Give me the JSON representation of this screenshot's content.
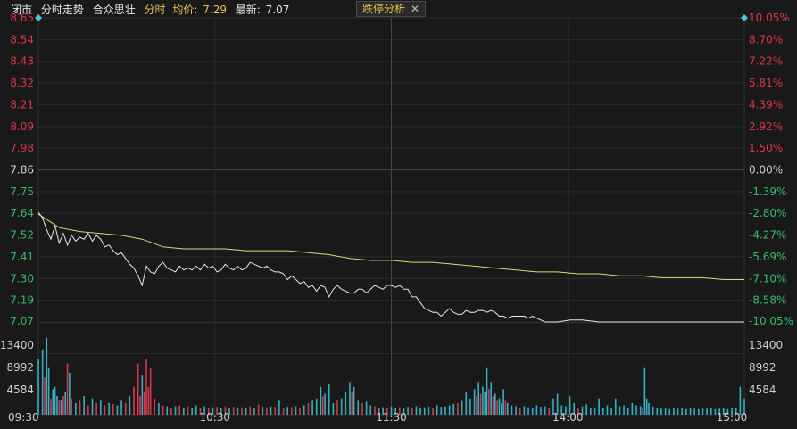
{
  "header": {
    "status": "闭市",
    "mode": "分时走势",
    "name": "合众思壮",
    "period": "分时",
    "avg_label": "均价:",
    "avg_value": "7.29",
    "last_label": "最新:",
    "last_value": "7.07"
  },
  "panel_button": {
    "label": "跌停分析",
    "close": "✕"
  },
  "colors": {
    "up": "#e0354b",
    "down": "#2fbe6a",
    "flat": "#d0d0d0",
    "price_line": "#e8e8e8",
    "avg_line": "#d9d97a",
    "vol_up": "#e0354b",
    "vol_down": "#29b6c8",
    "grid": "#2c2c2c"
  },
  "chart_data": {
    "type": "line",
    "price_ticks": [
      "8.65",
      "8.54",
      "8.43",
      "8.32",
      "8.21",
      "8.09",
      "7.98",
      "7.86",
      "7.75",
      "7.64",
      "7.52",
      "7.41",
      "7.30",
      "7.19",
      "7.07"
    ],
    "pct_ticks": [
      "10.05%",
      "8.70%",
      "7.22%",
      "5.81%",
      "4.39%",
      "2.92%",
      "1.50%",
      "0.00%",
      "-1.39%",
      "-2.80%",
      "-4.27%",
      "-5.69%",
      "-7.10%",
      "-8.58%",
      "-10.05%"
    ],
    "ylim": [
      7.07,
      8.65
    ],
    "prev_close": 7.86,
    "volume_ticks": [
      "13400",
      "8992",
      "4584"
    ],
    "volume_max": 17800,
    "time_ticks": [
      "09:30",
      "10:30",
      "11:30",
      "14:00",
      "15:00"
    ],
    "price_series": [
      [
        0,
        7.64
      ],
      [
        2,
        7.61
      ],
      [
        4,
        7.55
      ],
      [
        6,
        7.5
      ],
      [
        8,
        7.57
      ],
      [
        10,
        7.48
      ],
      [
        12,
        7.53
      ],
      [
        14,
        7.47
      ],
      [
        16,
        7.52
      ],
      [
        18,
        7.49
      ],
      [
        20,
        7.51
      ],
      [
        22,
        7.5
      ],
      [
        24,
        7.53
      ],
      [
        26,
        7.49
      ],
      [
        28,
        7.52
      ],
      [
        30,
        7.5
      ],
      [
        32,
        7.46
      ],
      [
        34,
        7.47
      ],
      [
        36,
        7.44
      ],
      [
        38,
        7.42
      ],
      [
        40,
        7.43
      ],
      [
        42,
        7.4
      ],
      [
        44,
        7.37
      ],
      [
        46,
        7.35
      ],
      [
        48,
        7.31
      ],
      [
        50,
        7.26
      ],
      [
        52,
        7.36
      ],
      [
        54,
        7.33
      ],
      [
        56,
        7.32
      ],
      [
        58,
        7.36
      ],
      [
        60,
        7.38
      ],
      [
        62,
        7.35
      ],
      [
        64,
        7.34
      ],
      [
        66,
        7.33
      ],
      [
        68,
        7.36
      ],
      [
        70,
        7.34
      ],
      [
        72,
        7.35
      ],
      [
        74,
        7.34
      ],
      [
        76,
        7.36
      ],
      [
        78,
        7.34
      ],
      [
        80,
        7.37
      ],
      [
        82,
        7.35
      ],
      [
        84,
        7.36
      ],
      [
        86,
        7.33
      ],
      [
        88,
        7.34
      ],
      [
        90,
        7.37
      ],
      [
        92,
        7.35
      ],
      [
        94,
        7.34
      ],
      [
        96,
        7.36
      ],
      [
        98,
        7.34
      ],
      [
        100,
        7.35
      ],
      [
        102,
        7.38
      ],
      [
        104,
        7.37
      ],
      [
        106,
        7.36
      ],
      [
        108,
        7.35
      ],
      [
        110,
        7.36
      ],
      [
        112,
        7.34
      ],
      [
        114,
        7.33
      ],
      [
        116,
        7.33
      ],
      [
        118,
        7.32
      ],
      [
        120,
        7.29
      ],
      [
        122,
        7.31
      ],
      [
        124,
        7.29
      ],
      [
        126,
        7.27
      ],
      [
        128,
        7.28
      ],
      [
        130,
        7.25
      ],
      [
        132,
        7.26
      ],
      [
        134,
        7.23
      ],
      [
        136,
        7.26
      ],
      [
        138,
        7.25
      ],
      [
        140,
        7.2
      ],
      [
        142,
        7.24
      ],
      [
        144,
        7.26
      ],
      [
        146,
        7.24
      ],
      [
        148,
        7.23
      ],
      [
        150,
        7.22
      ],
      [
        152,
        7.22
      ],
      [
        154,
        7.24
      ],
      [
        156,
        7.24
      ],
      [
        158,
        7.22
      ],
      [
        160,
        7.24
      ],
      [
        162,
        7.26
      ],
      [
        164,
        7.25
      ],
      [
        166,
        7.24
      ],
      [
        168,
        7.26
      ],
      [
        170,
        7.26
      ],
      [
        172,
        7.25
      ],
      [
        174,
        7.26
      ],
      [
        176,
        7.24
      ],
      [
        178,
        7.24
      ],
      [
        180,
        7.2
      ],
      [
        182,
        7.2
      ],
      [
        184,
        7.17
      ],
      [
        186,
        7.14
      ],
      [
        188,
        7.13
      ],
      [
        190,
        7.12
      ],
      [
        192,
        7.12
      ],
      [
        194,
        7.1
      ],
      [
        196,
        7.12
      ],
      [
        198,
        7.14
      ],
      [
        200,
        7.12
      ],
      [
        202,
        7.11
      ],
      [
        204,
        7.11
      ],
      [
        206,
        7.13
      ],
      [
        208,
        7.12
      ],
      [
        210,
        7.12
      ],
      [
        212,
        7.13
      ],
      [
        214,
        7.13
      ],
      [
        216,
        7.12
      ],
      [
        218,
        7.13
      ],
      [
        220,
        7.12
      ],
      [
        222,
        7.1
      ],
      [
        224,
        7.1
      ],
      [
        226,
        7.09
      ],
      [
        228,
        7.1
      ],
      [
        230,
        7.1
      ],
      [
        232,
        7.1
      ],
      [
        234,
        7.1
      ],
      [
        236,
        7.09
      ],
      [
        238,
        7.1
      ],
      [
        240,
        7.09
      ],
      [
        244,
        7.07
      ],
      [
        250,
        7.07
      ],
      [
        256,
        7.08
      ],
      [
        262,
        7.08
      ],
      [
        270,
        7.07
      ],
      [
        280,
        7.07
      ],
      [
        290,
        7.07
      ],
      [
        300,
        7.07
      ],
      [
        310,
        7.07
      ],
      [
        320,
        7.07
      ],
      [
        330,
        7.07
      ],
      [
        340,
        7.07
      ]
    ],
    "avg_series": [
      [
        0,
        7.63
      ],
      [
        10,
        7.56
      ],
      [
        20,
        7.54
      ],
      [
        30,
        7.53
      ],
      [
        40,
        7.52
      ],
      [
        50,
        7.5
      ],
      [
        60,
        7.46
      ],
      [
        70,
        7.45
      ],
      [
        80,
        7.45
      ],
      [
        90,
        7.45
      ],
      [
        100,
        7.44
      ],
      [
        110,
        7.44
      ],
      [
        120,
        7.44
      ],
      [
        130,
        7.43
      ],
      [
        140,
        7.42
      ],
      [
        150,
        7.4
      ],
      [
        160,
        7.39
      ],
      [
        170,
        7.39
      ],
      [
        180,
        7.38
      ],
      [
        190,
        7.38
      ],
      [
        200,
        7.37
      ],
      [
        210,
        7.36
      ],
      [
        220,
        7.35
      ],
      [
        230,
        7.34
      ],
      [
        240,
        7.33
      ],
      [
        250,
        7.33
      ],
      [
        260,
        7.32
      ],
      [
        270,
        7.32
      ],
      [
        280,
        7.31
      ],
      [
        290,
        7.31
      ],
      [
        300,
        7.3
      ],
      [
        310,
        7.3
      ],
      [
        320,
        7.3
      ],
      [
        330,
        7.29
      ],
      [
        340,
        7.29
      ]
    ],
    "volume_bars": [
      [
        0,
        12000,
        "down"
      ],
      [
        2,
        14000,
        "down"
      ],
      [
        3,
        8000,
        "up"
      ],
      [
        4,
        16500,
        "down"
      ],
      [
        5,
        10000,
        "down"
      ],
      [
        6,
        3500,
        "up"
      ],
      [
        7,
        5500,
        "down"
      ],
      [
        8,
        6000,
        "down"
      ],
      [
        9,
        4000,
        "down"
      ],
      [
        10,
        3000,
        "up"
      ],
      [
        11,
        3200,
        "down"
      ],
      [
        12,
        4000,
        "up"
      ],
      [
        13,
        5000,
        "down"
      ],
      [
        14,
        11000,
        "up"
      ],
      [
        15,
        9000,
        "down"
      ],
      [
        16,
        3500,
        "up"
      ],
      [
        18,
        2500,
        "down"
      ],
      [
        20,
        3000,
        "up"
      ],
      [
        22,
        4000,
        "down"
      ],
      [
        24,
        2000,
        "up"
      ],
      [
        26,
        3500,
        "down"
      ],
      [
        28,
        2500,
        "up"
      ],
      [
        30,
        3000,
        "down"
      ],
      [
        32,
        2000,
        "up"
      ],
      [
        34,
        2500,
        "down"
      ],
      [
        36,
        2300,
        "up"
      ],
      [
        38,
        2000,
        "down"
      ],
      [
        40,
        3000,
        "down"
      ],
      [
        42,
        2500,
        "up"
      ],
      [
        44,
        4000,
        "down"
      ],
      [
        46,
        6000,
        "up"
      ],
      [
        48,
        11000,
        "up"
      ],
      [
        49,
        4000,
        "up"
      ],
      [
        50,
        8500,
        "down"
      ],
      [
        51,
        5000,
        "up"
      ],
      [
        52,
        12000,
        "up"
      ],
      [
        53,
        6000,
        "up"
      ],
      [
        54,
        10000,
        "up"
      ],
      [
        56,
        3500,
        "up"
      ],
      [
        58,
        2500,
        "down"
      ],
      [
        60,
        2000,
        "up"
      ],
      [
        62,
        1800,
        "down"
      ],
      [
        64,
        1500,
        "up"
      ],
      [
        66,
        1800,
        "down"
      ],
      [
        68,
        2000,
        "up"
      ],
      [
        70,
        1500,
        "down"
      ],
      [
        72,
        1800,
        "up"
      ],
      [
        74,
        1500,
        "down"
      ],
      [
        76,
        2000,
        "down"
      ],
      [
        78,
        1500,
        "up"
      ],
      [
        80,
        1800,
        "down"
      ],
      [
        82,
        1500,
        "up"
      ],
      [
        84,
        1600,
        "down"
      ],
      [
        86,
        1700,
        "up"
      ],
      [
        88,
        1500,
        "down"
      ],
      [
        90,
        1800,
        "up"
      ],
      [
        92,
        1500,
        "down"
      ],
      [
        94,
        1700,
        "up"
      ],
      [
        96,
        1500,
        "down"
      ],
      [
        98,
        1600,
        "up"
      ],
      [
        100,
        1500,
        "down"
      ],
      [
        102,
        1800,
        "up"
      ],
      [
        104,
        1500,
        "down"
      ],
      [
        106,
        2200,
        "up"
      ],
      [
        108,
        1700,
        "down"
      ],
      [
        110,
        1600,
        "up"
      ],
      [
        112,
        1800,
        "down"
      ],
      [
        114,
        1700,
        "up"
      ],
      [
        116,
        3000,
        "down"
      ],
      [
        118,
        1500,
        "up"
      ],
      [
        120,
        1700,
        "down"
      ],
      [
        122,
        1600,
        "up"
      ],
      [
        124,
        1800,
        "down"
      ],
      [
        126,
        1500,
        "up"
      ],
      [
        128,
        2000,
        "down"
      ],
      [
        130,
        2500,
        "up"
      ],
      [
        132,
        3000,
        "down"
      ],
      [
        134,
        3500,
        "down"
      ],
      [
        136,
        6000,
        "down"
      ],
      [
        137,
        4000,
        "up"
      ],
      [
        138,
        4500,
        "down"
      ],
      [
        140,
        6500,
        "down"
      ],
      [
        142,
        2500,
        "down"
      ],
      [
        144,
        3000,
        "up"
      ],
      [
        146,
        3500,
        "down"
      ],
      [
        148,
        5000,
        "down"
      ],
      [
        150,
        7000,
        "down"
      ],
      [
        151,
        5000,
        "up"
      ],
      [
        152,
        6000,
        "down"
      ],
      [
        154,
        3000,
        "down"
      ],
      [
        156,
        2500,
        "up"
      ],
      [
        158,
        2800,
        "down"
      ],
      [
        160,
        2000,
        "down"
      ],
      [
        162,
        1800,
        "up"
      ],
      [
        164,
        1500,
        "down"
      ],
      [
        166,
        1600,
        "down"
      ],
      [
        168,
        1500,
        "up"
      ],
      [
        170,
        1800,
        "down"
      ],
      [
        172,
        1500,
        "down"
      ],
      [
        174,
        1600,
        "up"
      ],
      [
        176,
        1500,
        "down"
      ],
      [
        178,
        1700,
        "down"
      ],
      [
        180,
        1500,
        "up"
      ],
      [
        182,
        1800,
        "down"
      ],
      [
        184,
        1500,
        "down"
      ],
      [
        186,
        1600,
        "down"
      ],
      [
        188,
        1800,
        "down"
      ],
      [
        190,
        1500,
        "up"
      ],
      [
        192,
        2000,
        "down"
      ],
      [
        194,
        1700,
        "down"
      ],
      [
        196,
        1800,
        "down"
      ],
      [
        198,
        2000,
        "down"
      ],
      [
        200,
        2300,
        "down"
      ],
      [
        202,
        2500,
        "up"
      ],
      [
        204,
        3000,
        "down"
      ],
      [
        206,
        5000,
        "down"
      ],
      [
        208,
        3500,
        "down"
      ],
      [
        210,
        5500,
        "down"
      ],
      [
        211,
        4000,
        "up"
      ],
      [
        212,
        7000,
        "down"
      ],
      [
        213,
        4500,
        "up"
      ],
      [
        214,
        6000,
        "down"
      ],
      [
        215,
        5000,
        "down"
      ],
      [
        216,
        10000,
        "down"
      ],
      [
        217,
        5500,
        "up"
      ],
      [
        218,
        7000,
        "down"
      ],
      [
        219,
        4000,
        "up"
      ],
      [
        220,
        4500,
        "down"
      ],
      [
        221,
        3000,
        "up"
      ],
      [
        222,
        3500,
        "down"
      ],
      [
        223,
        2500,
        "down"
      ],
      [
        224,
        5500,
        "down"
      ],
      [
        225,
        3000,
        "up"
      ],
      [
        226,
        2500,
        "down"
      ],
      [
        228,
        2000,
        "down"
      ],
      [
        230,
        1800,
        "down"
      ],
      [
        232,
        1500,
        "up"
      ],
      [
        234,
        1800,
        "down"
      ],
      [
        236,
        1600,
        "down"
      ],
      [
        238,
        1500,
        "down"
      ],
      [
        240,
        2000,
        "down"
      ],
      [
        242,
        1700,
        "down"
      ],
      [
        244,
        1800,
        "down"
      ],
      [
        246,
        1500,
        "up"
      ],
      [
        248,
        3500,
        "down"
      ],
      [
        250,
        4500,
        "down"
      ],
      [
        252,
        2000,
        "down"
      ],
      [
        254,
        1800,
        "down"
      ],
      [
        256,
        4000,
        "down"
      ],
      [
        258,
        2500,
        "down"
      ],
      [
        260,
        1500,
        "up"
      ],
      [
        262,
        1800,
        "down"
      ],
      [
        264,
        2200,
        "down"
      ],
      [
        266,
        1500,
        "down"
      ],
      [
        268,
        1600,
        "down"
      ],
      [
        270,
        3500,
        "down"
      ],
      [
        272,
        1500,
        "down"
      ],
      [
        274,
        2000,
        "down"
      ],
      [
        276,
        1500,
        "down"
      ],
      [
        278,
        3500,
        "down"
      ],
      [
        280,
        1800,
        "down"
      ],
      [
        282,
        2000,
        "down"
      ],
      [
        284,
        1500,
        "down"
      ],
      [
        286,
        2500,
        "down"
      ],
      [
        288,
        2000,
        "down"
      ],
      [
        290,
        1800,
        "down"
      ],
      [
        291,
        1500,
        "up"
      ],
      [
        292,
        10000,
        "down"
      ],
      [
        293,
        3500,
        "down"
      ],
      [
        294,
        2500,
        "down"
      ],
      [
        296,
        1800,
        "down"
      ],
      [
        298,
        1500,
        "down"
      ],
      [
        300,
        1300,
        "down"
      ],
      [
        302,
        1500,
        "down"
      ],
      [
        304,
        1200,
        "down"
      ],
      [
        306,
        1400,
        "down"
      ],
      [
        308,
        1300,
        "down"
      ],
      [
        310,
        1500,
        "down"
      ],
      [
        312,
        1200,
        "down"
      ],
      [
        314,
        1400,
        "down"
      ],
      [
        316,
        1300,
        "down"
      ],
      [
        318,
        1200,
        "down"
      ],
      [
        320,
        1400,
        "down"
      ],
      [
        322,
        1300,
        "down"
      ],
      [
        324,
        1500,
        "down"
      ],
      [
        326,
        1200,
        "down"
      ],
      [
        328,
        1300,
        "down"
      ],
      [
        330,
        1500,
        "down"
      ],
      [
        332,
        1200,
        "down"
      ],
      [
        334,
        1400,
        "down"
      ],
      [
        336,
        1500,
        "down"
      ],
      [
        338,
        6000,
        "down"
      ],
      [
        340,
        3500,
        "down"
      ]
    ],
    "ticks_time_positions": [
      0,
      60,
      120,
      180,
      240
    ]
  }
}
